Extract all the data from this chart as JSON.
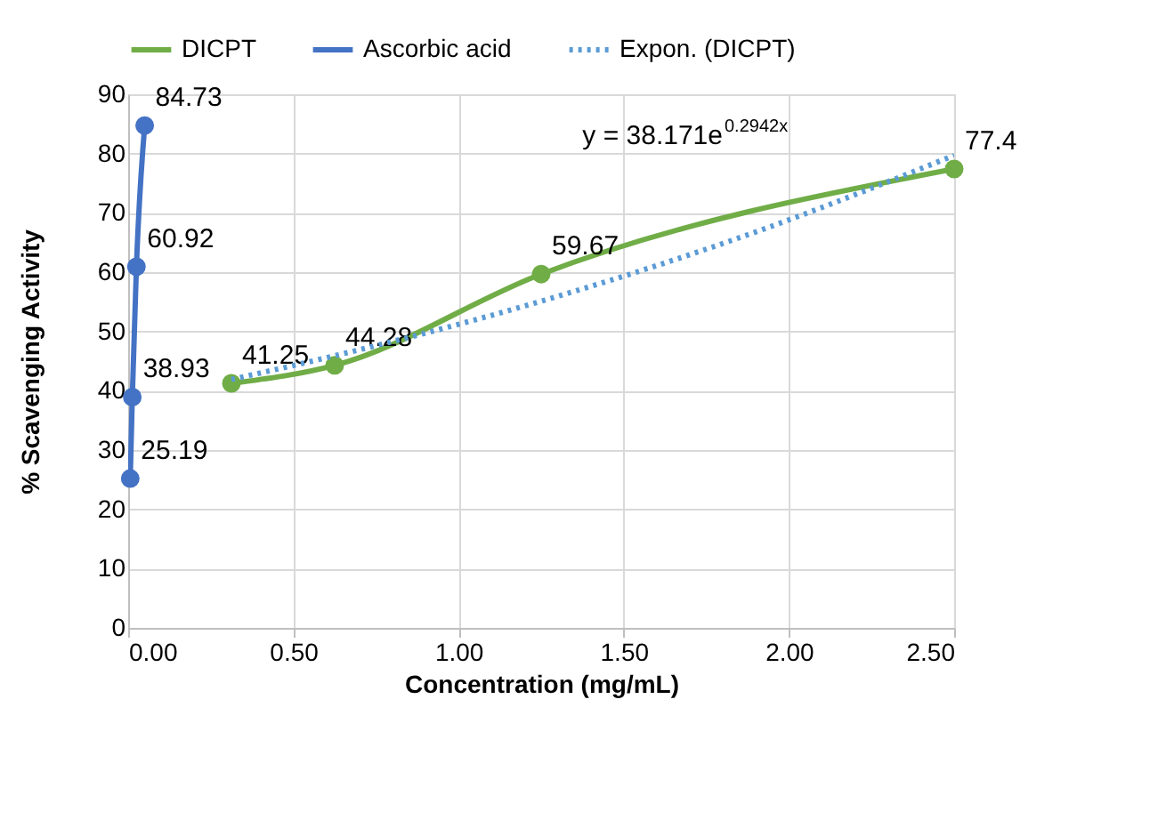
{
  "chart_data": {
    "type": "line",
    "xlabel": "Concentration (mg/mL)",
    "ylabel": "% Scavenging Activity",
    "xlim": [
      0,
      2.5
    ],
    "xticks": [
      {
        "value": 0,
        "label": "0.00"
      },
      {
        "value": 0.5,
        "label": "0.50"
      },
      {
        "value": 1,
        "label": "1.00"
      },
      {
        "value": 1.5,
        "label": "1.50"
      },
      {
        "value": 2,
        "label": "2.00"
      },
      {
        "value": 2.5,
        "label": "2.50"
      }
    ],
    "ylim": [
      0,
      90
    ],
    "yticks": [
      0,
      10,
      20,
      30,
      40,
      50,
      60,
      70,
      80,
      90
    ],
    "grid": true,
    "legend": "top",
    "data_labels": true,
    "annotations": [
      "y = 38.171e$^{0.2942x}$"
    ],
    "series": [
      {
        "name": "DICPT",
        "color": "#70ad47",
        "x": [
          0.3125,
          0.625,
          1.25,
          2.5
        ],
        "values": [
          41.25,
          44.28,
          59.67,
          77.4
        ],
        "marker": "circle",
        "line_style": "solid"
      },
      {
        "name": "Ascorbic acid",
        "color": "#4472c4",
        "x": [
          0.00625,
          0.0125,
          0.025,
          0.05
        ],
        "values": [
          25.19,
          38.93,
          60.92,
          84.73
        ],
        "marker": "circle",
        "line_style": "solid"
      },
      {
        "name": "Expon. (DICPT)",
        "color": "#5b9bd5",
        "x": [
          0.3125,
          0.625,
          1.25,
          1.875,
          2.5
        ],
        "values": [
          41.9,
          45.9,
          55.1,
          66.3,
          79.7
        ],
        "marker": "none",
        "line_style": "dotted",
        "data_labels": false
      }
    ]
  }
}
